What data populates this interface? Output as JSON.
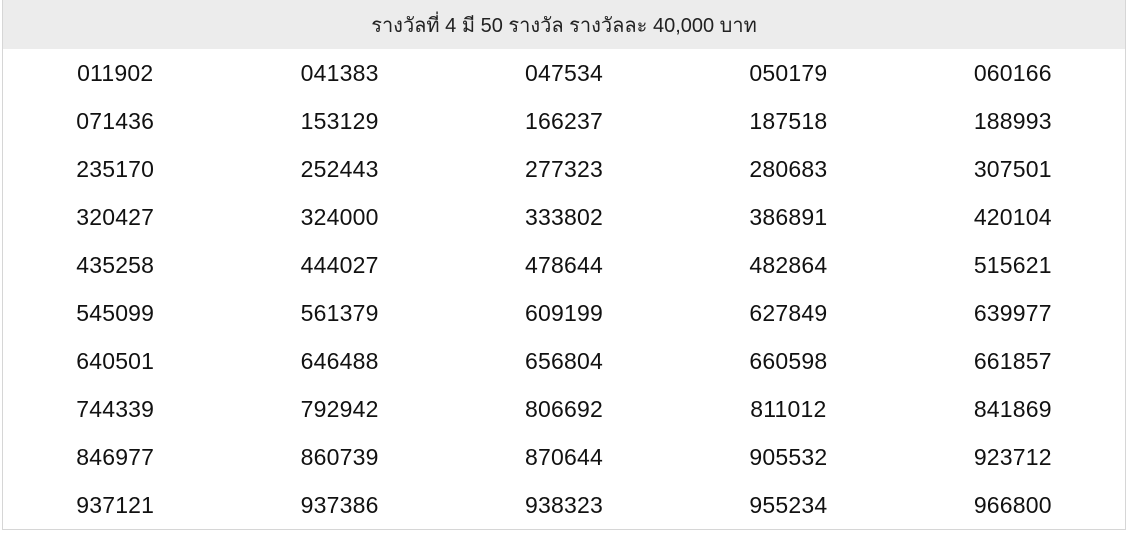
{
  "header": {
    "title": "รางวัลที่ 4 มี 50 รางวัล รางวัลละ 40,000 บาท"
  },
  "numbers": [
    "011902",
    "041383",
    "047534",
    "050179",
    "060166",
    "071436",
    "153129",
    "166237",
    "187518",
    "188993",
    "235170",
    "252443",
    "277323",
    "280683",
    "307501",
    "320427",
    "324000",
    "333802",
    "386891",
    "420104",
    "435258",
    "444027",
    "478644",
    "482864",
    "515621",
    "545099",
    "561379",
    "609199",
    "627849",
    "639977",
    "640501",
    "646488",
    "656804",
    "660598",
    "661857",
    "744339",
    "792942",
    "806692",
    "811012",
    "841869",
    "846977",
    "860739",
    "870644",
    "905532",
    "923712",
    "937121",
    "937386",
    "938323",
    "955234",
    "966800"
  ]
}
